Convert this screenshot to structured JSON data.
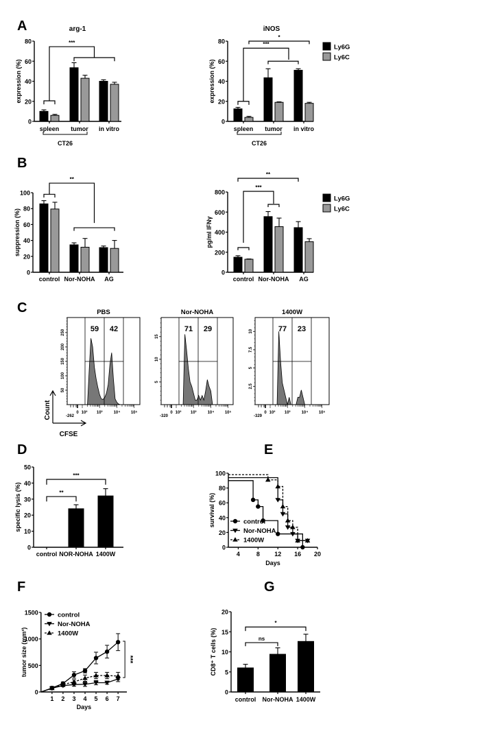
{
  "panels": {
    "A": "A",
    "B": "B",
    "C": "C",
    "D": "D",
    "E": "E",
    "F": "F",
    "G": "G"
  },
  "colors": {
    "Ly6G": "#000000",
    "Ly6C": "#999999",
    "histogram": "#777777"
  },
  "chart_data": [
    {
      "id": "A-arg1",
      "type": "bar",
      "title": "arg-1",
      "ylabel": "expression (%)",
      "xlabel": "",
      "categories": [
        "spleen",
        "tumor",
        "in vitro"
      ],
      "ylim": [
        0,
        80
      ],
      "yticks": [
        0,
        20,
        40,
        60,
        80
      ],
      "series": [
        {
          "name": "Ly6G",
          "values": [
            10,
            53.5,
            40
          ],
          "errors": [
            1.5,
            5,
            1.5
          ]
        },
        {
          "name": "Ly6C",
          "values": [
            6,
            43,
            37
          ],
          "errors": [
            1,
            3,
            2
          ]
        }
      ],
      "group_bracket": {
        "label": "CT26",
        "categories": [
          "spleen",
          "tumor"
        ]
      },
      "annotations": [
        {
          "label": "",
          "from": "spleen/Ly6G",
          "to": "spleen/Ly6C",
          "y": 20.5,
          "left_to": 17,
          "right_to": 17
        },
        {
          "label": "***",
          "from": "spleen",
          "to": [
            "tumor",
            "in vitro"
          ],
          "y": 74.5,
          "left_to": 20.5,
          "right_to": 63.6
        },
        {
          "label": "",
          "from": "tumor/Ly6G",
          "to": "in vitro/Ly6C",
          "y": 63.6,
          "left_to": 60,
          "right_to": 60
        }
      ]
    },
    {
      "id": "A-iNOS",
      "type": "bar",
      "title": "iNOS",
      "ylabel": "expression (%)",
      "xlabel": "",
      "categories": [
        "spleen",
        "tumor",
        "in vitro"
      ],
      "ylim": [
        0,
        80
      ],
      "yticks": [
        0,
        20,
        40,
        60,
        80
      ],
      "legend": {
        "entries": [
          "Ly6G",
          "Ly6C"
        ],
        "position": "right"
      },
      "series": [
        {
          "name": "Ly6G",
          "values": [
            12.5,
            43.5,
            51
          ],
          "errors": [
            1.5,
            9,
            1.5
          ]
        },
        {
          "name": "Ly6C",
          "values": [
            4,
            19,
            18
          ],
          "errors": [
            1,
            0.5,
            1
          ]
        }
      ],
      "group_bracket": {
        "label": "CT26",
        "categories": [
          "spleen",
          "tumor"
        ]
      },
      "annotations": [
        {
          "label": "",
          "from": "spleen/Ly6G",
          "to": "spleen/Ly6C",
          "y": 20,
          "left_to": 16.5,
          "right_to": 16.5
        },
        {
          "label": "***",
          "from": "spleen",
          "to": [
            "tumor",
            "in vitro"
          ],
          "y": 73,
          "left_to": 20,
          "right_to": 61.5
        },
        {
          "label": "",
          "from": "tumor/Ly6G",
          "to": "in vitro/Ly6G",
          "y": 60,
          "left_to": 57,
          "right_to": 57
        },
        {
          "label": "*",
          "from": "spleen/Ly6C",
          "to": "in vitro/Ly6C",
          "y": 80,
          "left_to": 77,
          "right_to": 77
        }
      ]
    },
    {
      "id": "B-suppression",
      "type": "bar",
      "title": "",
      "ylabel": "suppression (%)",
      "xlabel": "",
      "categories": [
        "control",
        "Nor-NOHA",
        "AG"
      ],
      "ylim": [
        0,
        100
      ],
      "yticks": [
        0,
        20,
        40,
        60,
        80,
        100
      ],
      "series": [
        {
          "name": "Ly6G",
          "values": [
            86,
            34.5,
            31
          ],
          "errors": [
            4,
            2.5,
            2
          ]
        },
        {
          "name": "Ly6C",
          "values": [
            79.5,
            31.5,
            30
          ],
          "errors": [
            8.5,
            11,
            10
          ]
        }
      ],
      "annotations": [
        {
          "label": "",
          "from": "control/Ly6G",
          "to": "control/Ly6C",
          "y": 98,
          "left_to": 94,
          "right_to": 94
        },
        {
          "label": "**",
          "from": "control",
          "to": [
            "Nor-NOHA",
            "AG"
          ],
          "y": 112,
          "left_to": 98,
          "right_to": 62
        },
        {
          "label": "",
          "from": "Nor-NOHA/Ly6G",
          "to": "AG/Ly6C",
          "y": 56,
          "left_to": 52,
          "right_to": 52
        }
      ]
    },
    {
      "id": "B-IFNg",
      "type": "bar",
      "title": "",
      "ylabel": "pg/ml IFNγ",
      "xlabel": "",
      "categories": [
        "control",
        "Nor-NOHA",
        "AG"
      ],
      "ylim": [
        0,
        800
      ],
      "yticks": [
        0,
        200,
        400,
        600,
        800
      ],
      "legend": {
        "entries": [
          "Ly6G",
          "Ly6C"
        ],
        "position": "right"
      },
      "series": [
        {
          "name": "Ly6G",
          "values": [
            150,
            555,
            445
          ],
          "errors": [
            15,
            50,
            60
          ]
        },
        {
          "name": "Ly6C",
          "values": [
            130,
            455,
            305
          ],
          "errors": [
            3,
            85,
            30
          ]
        }
      ],
      "annotations": [
        {
          "label": "",
          "from": "control/Ly6G",
          "to": "control/Ly6C",
          "y": 246,
          "left_to": 220,
          "right_to": 220
        },
        {
          "label": "***",
          "from": "control",
          "to": "Nor-NOHA",
          "y": 807,
          "left_to": 294,
          "right_to": 684
        },
        {
          "label": "",
          "from": "Nor-NOHA/Ly6G",
          "to": "Nor-NOHA/Ly6C",
          "y": 677,
          "left_to": 650,
          "right_to": 650
        },
        {
          "label": "**",
          "from": "control/Ly6G",
          "to": "AG/Ly6G",
          "y": 937,
          "left_to": 903,
          "right_to": 903
        }
      ]
    },
    {
      "id": "C-PBS",
      "type": "histogram",
      "title": "PBS",
      "gates": [
        "59",
        "42"
      ],
      "ylim": [
        0,
        302
      ],
      "yticks": [
        "50",
        "100",
        "150",
        "200",
        "250"
      ],
      "ytick_values": [
        50,
        100,
        150,
        200,
        250
      ],
      "xtick_labels": [
        "-262",
        "0",
        "10²",
        "10³",
        "10⁴",
        "10⁵"
      ],
      "log_start": 2.3,
      "log_step": 0.1,
      "counts": [
        0,
        120,
        230,
        200,
        130,
        90,
        60,
        35,
        20,
        18,
        25,
        40,
        70,
        140,
        180,
        90,
        20,
        8,
        2,
        0
      ]
    },
    {
      "id": "C-NorNOHA",
      "type": "histogram",
      "title": "Nor-NOHA",
      "gates": [
        "71",
        "29"
      ],
      "ylim": [
        0,
        19.2
      ],
      "yticks": [
        "5",
        "10",
        "15"
      ],
      "ytick_values": [
        5,
        10,
        15
      ],
      "xtick_labels": [
        "-320",
        "0",
        "10²",
        "10³",
        "10⁴",
        "10⁵"
      ],
      "log_start": 2.4,
      "log_step": 0.1,
      "counts": [
        0,
        15.5,
        12,
        8,
        5,
        4,
        2.5,
        1,
        1,
        2,
        1,
        2,
        1,
        3,
        5.5,
        4,
        3,
        0
      ]
    },
    {
      "id": "C-1400W",
      "type": "histogram",
      "title": "1400W",
      "gates": [
        "77",
        "23"
      ],
      "ylim": [
        0,
        11.9
      ],
      "yticks": [
        "2.5",
        "5",
        "7.5",
        "10"
      ],
      "ytick_values": [
        2.5,
        5,
        7.5,
        10
      ],
      "xtick_labels": [
        "-329",
        "0",
        "10²",
        "10³",
        "10⁴",
        "10⁵"
      ],
      "log_start": 2.4,
      "log_step": 0.1,
      "counts": [
        0,
        10,
        6,
        3,
        2,
        1,
        0,
        1,
        0,
        0,
        0,
        0,
        1,
        1,
        2,
        1,
        0
      ],
      "axis_labels": {
        "y": "Count",
        "x": "CFSE"
      }
    },
    {
      "id": "D-lysis",
      "type": "bar",
      "title": "",
      "ylabel": "specific lysis (%)",
      "xlabel": "",
      "categories": [
        "control",
        "NOR-NOHA",
        "1400W"
      ],
      "ylim": [
        0,
        50
      ],
      "yticks": [
        0,
        10,
        20,
        30,
        40,
        50
      ],
      "series": [
        {
          "values": [
            0,
            24,
            32
          ],
          "errors": [
            0,
            2.5,
            4.5
          ]
        }
      ],
      "annotations": [
        {
          "label": "**",
          "from": "control",
          "to": "NOR-NOHA",
          "y": 31.6,
          "left_to": 28.5,
          "right_to": 28.5
        },
        {
          "label": "***",
          "from": "control",
          "to": "1400W",
          "y": 42.3,
          "left_to": 39,
          "right_to": 39
        }
      ]
    },
    {
      "id": "E-survival",
      "type": "line",
      "step": true,
      "title": "",
      "ylabel": "survival (%)",
      "xlabel": "Days",
      "xlim": [
        2,
        20
      ],
      "ylim": [
        0,
        100
      ],
      "xticks": [
        4,
        8,
        12,
        16,
        20
      ],
      "yticks": [
        0,
        20,
        40,
        60,
        80,
        100
      ],
      "legend": {
        "position": "bottom-left"
      },
      "series": [
        {
          "name": "control",
          "marker": "circle",
          "dash": false,
          "points": [
            [
              2,
              90
            ],
            [
              7,
              64
            ],
            [
              8,
              55
            ],
            [
              9,
              36
            ],
            [
              12,
              18
            ],
            [
              17,
              0
            ]
          ]
        },
        {
          "name": "Nor-NOHA",
          "marker": "triangle-down",
          "dash": false,
          "points": [
            [
              2,
              94
            ],
            [
              12,
              64
            ],
            [
              13,
              45
            ],
            [
              14,
              27
            ],
            [
              15,
              18
            ],
            [
              16,
              9
            ],
            [
              18,
              9
            ]
          ]
        },
        {
          "name": "1400W",
          "marker": "triangle-up",
          "dash": true,
          "points": [
            [
              2,
              98
            ],
            [
              10,
              91
            ],
            [
              12,
              82
            ],
            [
              13,
              55
            ],
            [
              14,
              36
            ],
            [
              15,
              27
            ],
            [
              16,
              9
            ],
            [
              18,
              9
            ]
          ]
        }
      ]
    },
    {
      "id": "F-tumor",
      "type": "line",
      "step": false,
      "title": "",
      "ylabel": "tumor size (mm³)",
      "xlabel": "Days",
      "xlim": [
        0,
        7.8
      ],
      "ylim": [
        0,
        1500
      ],
      "xticks": [
        1,
        2,
        3,
        4,
        5,
        6,
        7
      ],
      "yticks": [
        0,
        500,
        1000,
        1500
      ],
      "legend": {
        "position": "top-left"
      },
      "series": [
        {
          "name": "control",
          "marker": "circle",
          "dash": false,
          "points": [
            [
              0,
              0
            ],
            [
              1,
              75
            ],
            [
              2,
              160
            ],
            [
              3,
              320
            ],
            [
              4,
              400
            ],
            [
              5,
              640
            ],
            [
              6,
              760
            ],
            [
              7,
              940
            ]
          ],
          "errors": [
            0,
            30,
            30,
            60,
            40,
            110,
            120,
            160
          ]
        },
        {
          "name": "Nor-NOHA",
          "marker": "triangle-down",
          "dash": false,
          "points": [
            [
              0,
              0
            ],
            [
              1,
              70
            ],
            [
              2,
              120
            ],
            [
              3,
              140
            ],
            [
              4,
              145
            ],
            [
              5,
              175
            ],
            [
              6,
              175
            ],
            [
              7,
              245
            ]
          ],
          "errors": [
            0,
            20,
            20,
            30,
            40,
            40,
            30,
            50
          ]
        },
        {
          "name": "1400W",
          "marker": "triangle-up",
          "dash": true,
          "points": [
            [
              0,
              0
            ],
            [
              1,
              70
            ],
            [
              2,
              140
            ],
            [
              3,
              190
            ],
            [
              4,
              260
            ],
            [
              5,
              310
            ],
            [
              6,
              310
            ],
            [
              7,
              300
            ]
          ],
          "errors": [
            0,
            20,
            20,
            40,
            60,
            60,
            60,
            70
          ]
        }
      ],
      "annotations": [
        {
          "label": "***",
          "x": 7,
          "y_range": [
            957,
            272
          ]
        }
      ]
    },
    {
      "id": "G-CD8",
      "type": "bar",
      "title": "",
      "ylabel": "CD8⁺ T cells (%)",
      "xlabel": "",
      "categories": [
        "control",
        "Nor-NOHA",
        "1400W"
      ],
      "ylim": [
        0,
        20
      ],
      "yticks": [
        0,
        5,
        10,
        15,
        20
      ],
      "series": [
        {
          "values": [
            6,
            9.4,
            12.6
          ],
          "errors": [
            0.9,
            1.6,
            1.8
          ]
        }
      ],
      "annotations": [
        {
          "label": "ns",
          "from": "control",
          "to": "Nor-NOHA",
          "y": 12.3,
          "left_to": 11.4,
          "right_to": 11.4
        },
        {
          "label": "*",
          "from": "control",
          "to": "1400W",
          "y": 16.2,
          "left_to": 15.2,
          "right_to": 15.2
        }
      ]
    }
  ]
}
